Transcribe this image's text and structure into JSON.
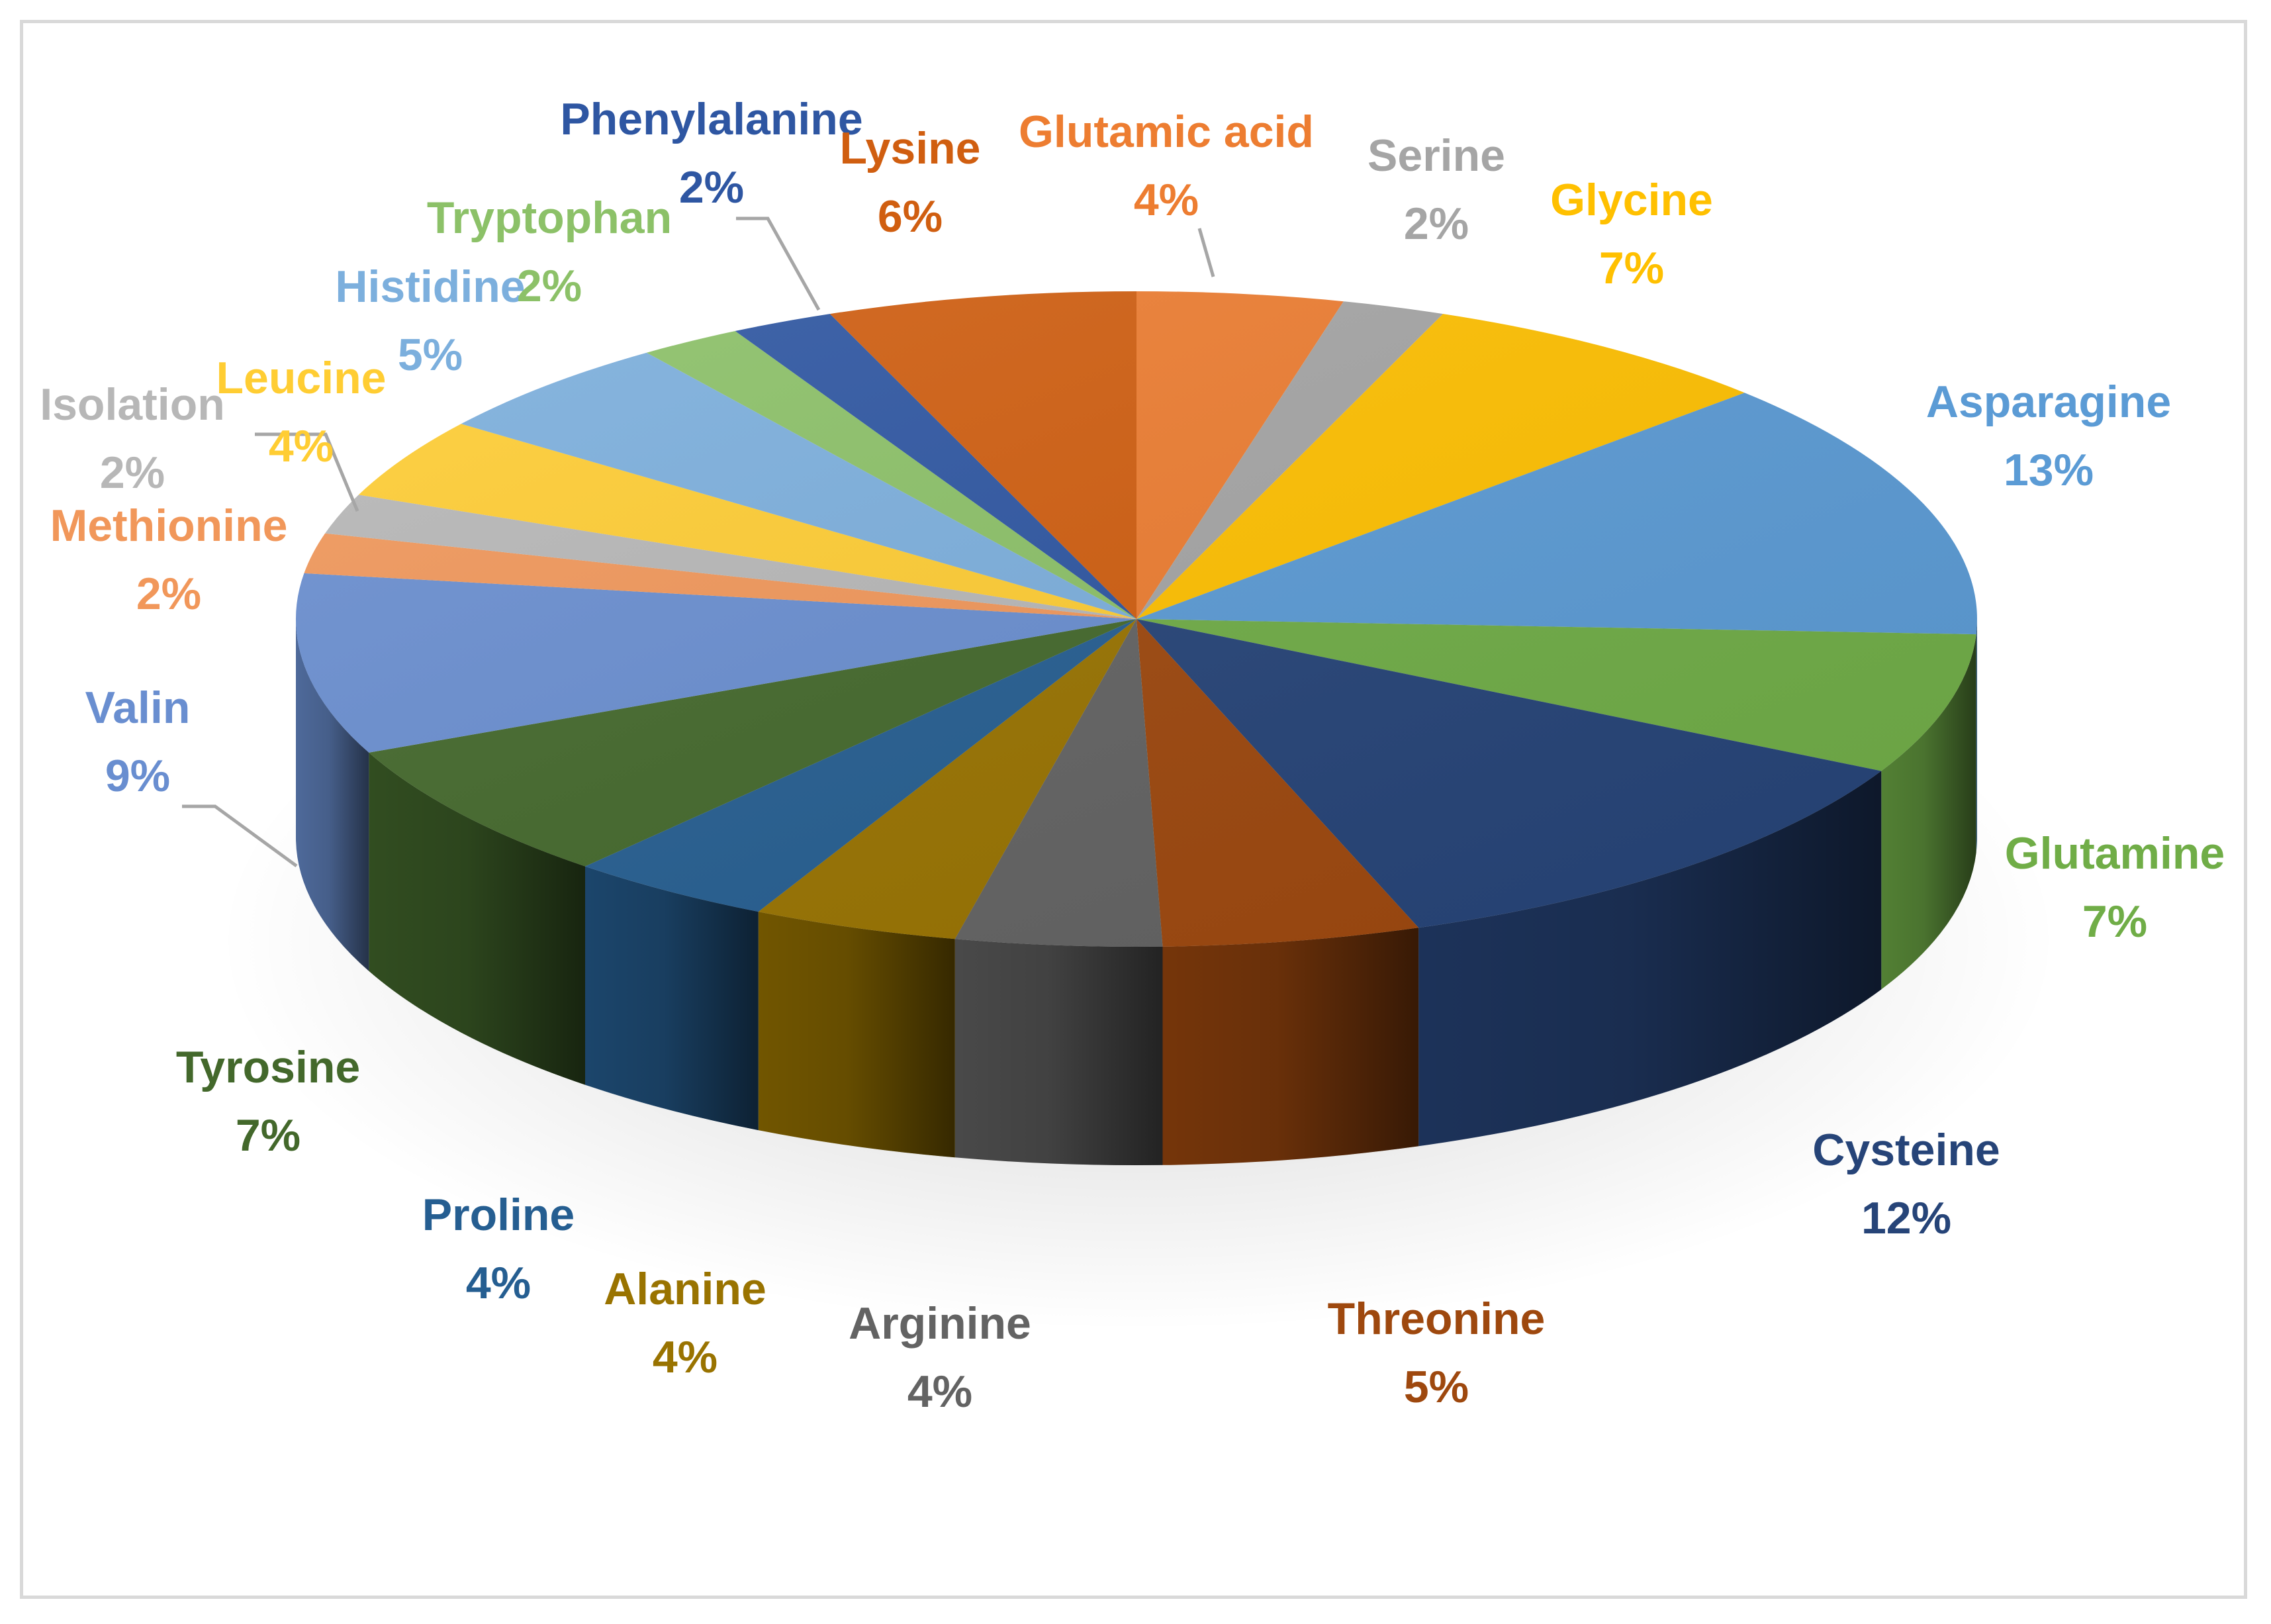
{
  "chart_data": {
    "type": "pie",
    "style": "3d",
    "title": "",
    "legend": "none",
    "slices": [
      {
        "label": "Glutamic acid",
        "value": 4,
        "value_label": "4%",
        "color": "#ED7D31"
      },
      {
        "label": "Serine",
        "value": 2,
        "value_label": "2%",
        "color": "#A5A5A5"
      },
      {
        "label": "Glycine",
        "value": 7,
        "value_label": "7%",
        "color": "#FFC000"
      },
      {
        "label": "Asparagine",
        "value": 13,
        "value_label": "13%",
        "color": "#5B9BD5"
      },
      {
        "label": "Glutamine",
        "value": 7,
        "value_label": "7%",
        "color": "#70AD47"
      },
      {
        "label": "Cysteine",
        "value": 12,
        "value_label": "12%",
        "color": "#264478"
      },
      {
        "label": "Threonine",
        "value": 5,
        "value_label": "5%",
        "color": "#9E480E"
      },
      {
        "label": "Arginine",
        "value": 4,
        "value_label": "4%",
        "color": "#636363"
      },
      {
        "label": "Alanine",
        "value": 4,
        "value_label": "4%",
        "color": "#997300"
      },
      {
        "label": "Proline",
        "value": 4,
        "value_label": "4%",
        "color": "#255E91"
      },
      {
        "label": "Tyrosine",
        "value": 7,
        "value_label": "7%",
        "color": "#43682B"
      },
      {
        "label": "Valin",
        "value": 9,
        "value_label": "9%",
        "color": "#698ED0"
      },
      {
        "label": "Methionine",
        "value": 2,
        "value_label": "2%",
        "color": "#F1975A"
      },
      {
        "label": "Isolation",
        "value": 2,
        "value_label": "2%",
        "color": "#B7B7B7"
      },
      {
        "label": "Leucine",
        "value": 4,
        "value_label": "4%",
        "color": "#FFCD33"
      },
      {
        "label": "Histidine",
        "value": 5,
        "value_label": "5%",
        "color": "#7CAFDD"
      },
      {
        "label": "Tryptophan",
        "value": 2,
        "value_label": "2%",
        "color": "#8CC168"
      },
      {
        "label": "Phenylalanine",
        "value": 2,
        "value_label": "2%",
        "color": "#2E56A2"
      },
      {
        "label": "Lysine",
        "value": 6,
        "value_label": "6%",
        "color": "#D05E10"
      }
    ]
  }
}
